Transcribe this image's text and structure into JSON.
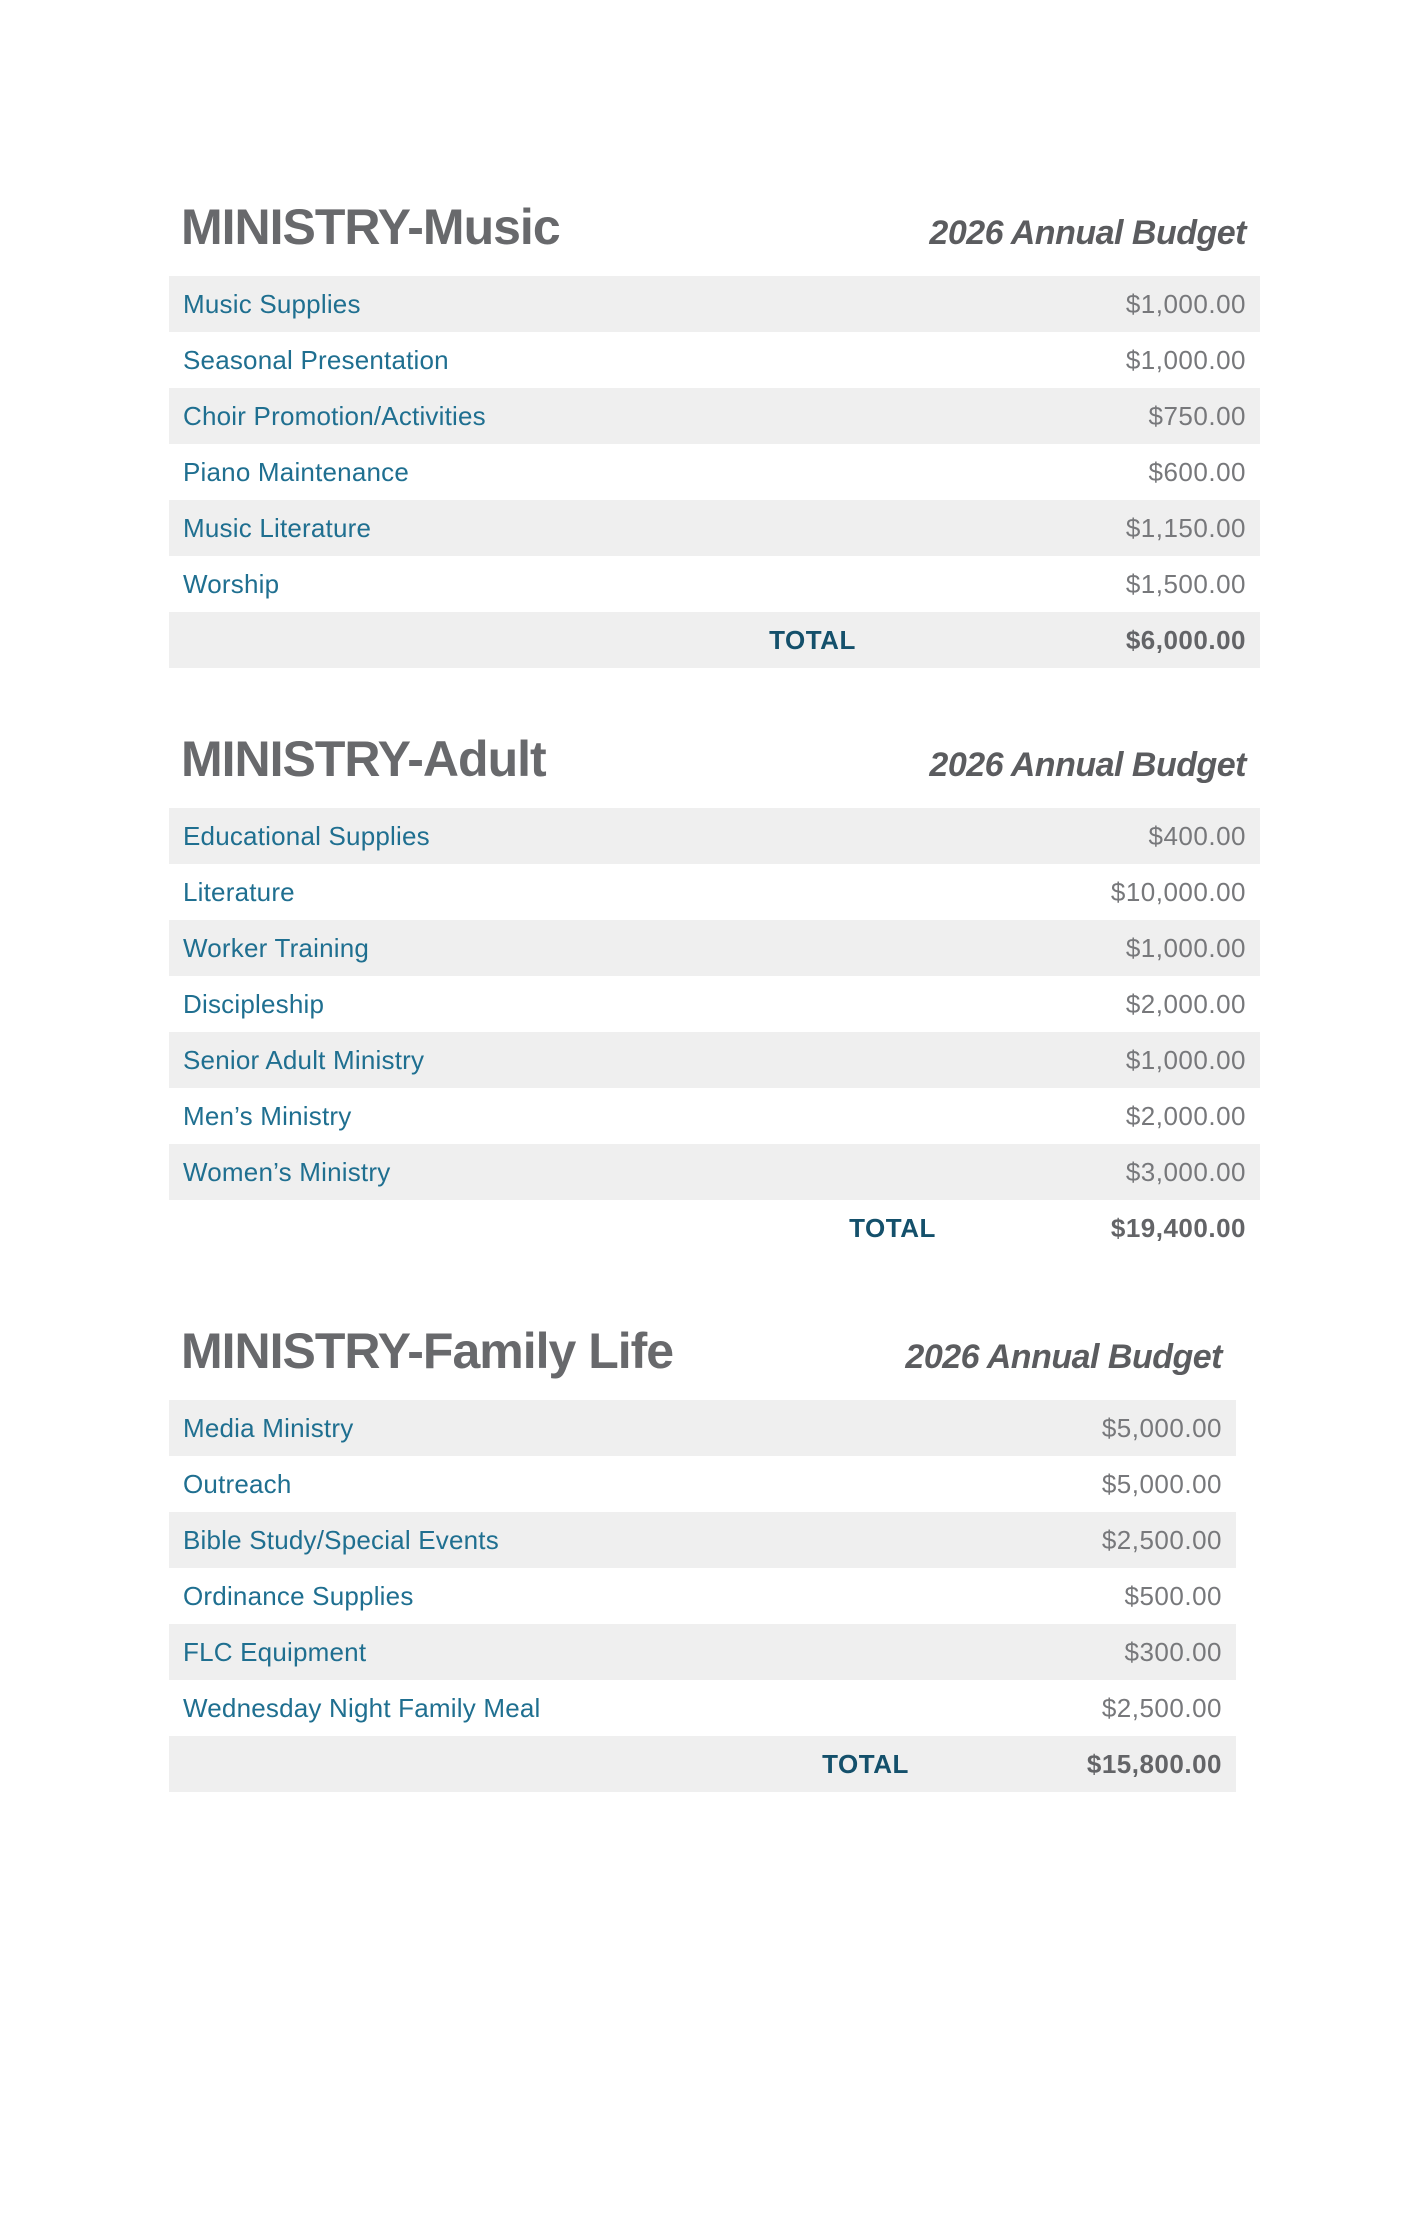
{
  "colors": {
    "section_title": "#68696C",
    "column_header": "#5B5C5F",
    "item_label_teal": "#1F6F90",
    "amount_gray": "#77787B",
    "total_label_teal": "#14506B",
    "total_amount_gray": "#636467",
    "row_stripe": "#EFEFEF",
    "background": "#FFFFFF"
  },
  "sections": [
    {
      "title": "MINISTRY-Music",
      "column_header": "2026 Annual Budget",
      "rows": [
        {
          "label": "Music Supplies",
          "amount": "$1,000.00"
        },
        {
          "label": "Seasonal Presentation",
          "amount": "$1,000.00"
        },
        {
          "label": "Choir Promotion/Activities",
          "amount": "$750.00"
        },
        {
          "label": "Piano Maintenance",
          "amount": "$600.00"
        },
        {
          "label": "Music Literature",
          "amount": "$1,150.00"
        },
        {
          "label": "Worship",
          "amount": "$1,500.00"
        }
      ],
      "total": {
        "label": "TOTAL",
        "amount": "$6,000.00"
      }
    },
    {
      "title": "MINISTRY-Adult",
      "column_header": "2026 Annual Budget",
      "rows": [
        {
          "label": "Educational Supplies",
          "amount": "$400.00"
        },
        {
          "label": "Literature",
          "amount": "$10,000.00"
        },
        {
          "label": "Worker Training",
          "amount": "$1,000.00"
        },
        {
          "label": "Discipleship",
          "amount": "$2,000.00"
        },
        {
          "label": "Senior Adult Ministry",
          "amount": "$1,000.00"
        },
        {
          "label": "Men’s Ministry",
          "amount": "$2,000.00"
        },
        {
          "label": "Women’s Ministry",
          "amount": "$3,000.00"
        }
      ],
      "total": {
        "label": "TOTAL",
        "amount": "$19,400.00"
      }
    },
    {
      "title": "MINISTRY-Family Life",
      "column_header": "2026 Annual Budget",
      "rows": [
        {
          "label": "Media Ministry",
          "amount": "$5,000.00"
        },
        {
          "label": "Outreach",
          "amount": "$5,000.00"
        },
        {
          "label": "Bible Study/Special Events",
          "amount": "$2,500.00"
        },
        {
          "label": "Ordinance Supplies",
          "amount": "$500.00"
        },
        {
          "label": "FLC Equipment",
          "amount": "$300.00"
        },
        {
          "label": "Wednesday Night Family Meal",
          "amount": "$2,500.00"
        }
      ],
      "total": {
        "label": "TOTAL",
        "amount": "$15,800.00"
      }
    }
  ]
}
